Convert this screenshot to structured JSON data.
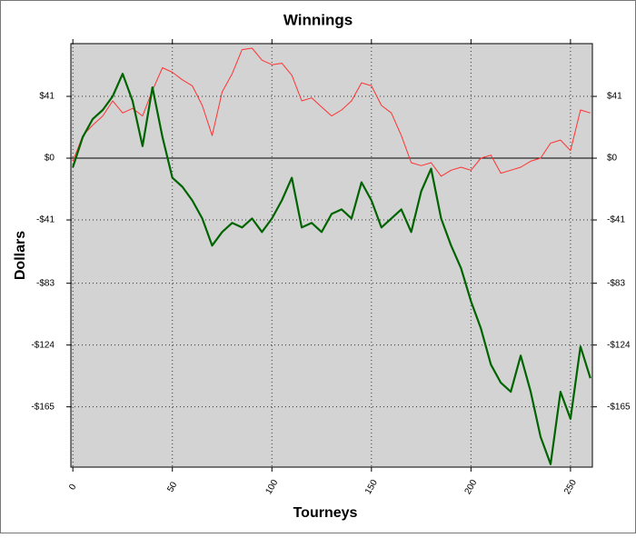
{
  "chart_data": {
    "type": "line",
    "title": "Winnings",
    "xlabel": "Tourneys",
    "ylabel": "Dollars",
    "x": [
      0,
      5,
      10,
      15,
      20,
      25,
      30,
      35,
      40,
      45,
      50,
      55,
      60,
      65,
      70,
      75,
      80,
      85,
      90,
      95,
      100,
      105,
      110,
      115,
      120,
      125,
      130,
      135,
      140,
      145,
      150,
      155,
      160,
      165,
      170,
      175,
      180,
      185,
      190,
      195,
      200,
      205,
      210,
      215,
      220,
      225,
      230,
      235,
      240,
      245,
      250,
      255,
      260
    ],
    "series": [
      {
        "color": "#ff3333",
        "width": 1,
        "values": [
          -2,
          15,
          22,
          28,
          38,
          30,
          33,
          28,
          45,
          60,
          57,
          52,
          48,
          35,
          15,
          44,
          56,
          72,
          73,
          65,
          62,
          63,
          55,
          38,
          40,
          34,
          28,
          32,
          38,
          50,
          48,
          35,
          30,
          15,
          -3,
          -5,
          -3,
          -12,
          -8,
          -6,
          -8,
          0,
          2,
          -10,
          -8,
          -6,
          -2,
          0,
          10,
          12,
          5,
          32,
          30
        ]
      },
      {
        "color": "#006400",
        "width": 2.2,
        "values": [
          -6,
          14,
          26,
          32,
          41,
          56,
          38,
          8,
          47,
          14,
          -13,
          -19,
          -28,
          -40,
          -58,
          -49,
          -43,
          -46,
          -40,
          -49,
          -40,
          -28,
          -13,
          -46,
          -43,
          -49,
          -37,
          -34,
          -40,
          -16,
          -28,
          -46,
          -40,
          -34,
          -49,
          -22,
          -7,
          -40,
          -58,
          -73,
          -95,
          -113,
          -137,
          -149,
          -155,
          -131,
          -155,
          -185,
          -203,
          -155,
          -173,
          -125,
          -146
        ]
      }
    ],
    "xlim": [
      -1,
      261
    ],
    "xticks": [
      0,
      50,
      100,
      150,
      200,
      250
    ],
    "ylim": [
      -205,
      76
    ],
    "yticks": [
      {
        "value": 41,
        "label": "$41"
      },
      {
        "value": 0,
        "label": "$0"
      },
      {
        "value": -41,
        "label": "-$41"
      },
      {
        "value": -83,
        "label": "-$83"
      },
      {
        "value": -124,
        "label": "-$124"
      },
      {
        "value": -165,
        "label": "-$165"
      }
    ],
    "grid": true,
    "zero_line": true,
    "background": "#d3d3d3"
  }
}
